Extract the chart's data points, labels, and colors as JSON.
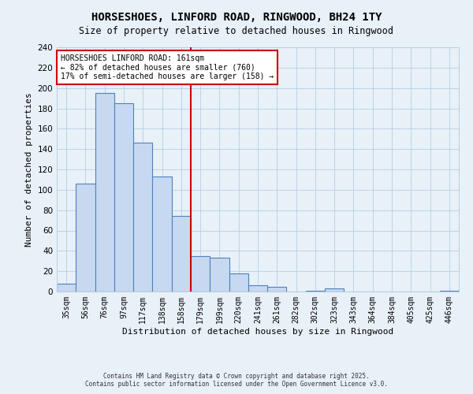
{
  "title": "HORSESHOES, LINFORD ROAD, RINGWOOD, BH24 1TY",
  "subtitle": "Size of property relative to detached houses in Ringwood",
  "xlabel": "Distribution of detached houses by size in Ringwood",
  "ylabel": "Number of detached properties",
  "bar_labels": [
    "35sqm",
    "56sqm",
    "76sqm",
    "97sqm",
    "117sqm",
    "138sqm",
    "158sqm",
    "179sqm",
    "199sqm",
    "220sqm",
    "241sqm",
    "261sqm",
    "282sqm",
    "302sqm",
    "323sqm",
    "343sqm",
    "364sqm",
    "384sqm",
    "405sqm",
    "425sqm",
    "446sqm"
  ],
  "bar_values": [
    8,
    106,
    195,
    185,
    146,
    113,
    74,
    35,
    33,
    18,
    6,
    5,
    0,
    1,
    3,
    0,
    0,
    0,
    0,
    0,
    1
  ],
  "bar_color": "#c6d9f0",
  "bar_edge_color": "#4f81bd",
  "ylim": [
    0,
    240
  ],
  "yticks": [
    0,
    20,
    40,
    60,
    80,
    100,
    120,
    140,
    160,
    180,
    200,
    220,
    240
  ],
  "annotation_title": "HORSESHOES LINFORD ROAD: 161sqm",
  "annotation_line1": "← 82% of detached houses are smaller (760)",
  "annotation_line2": "17% of semi-detached houses are larger (158) →",
  "annotation_box_color": "#ffffff",
  "annotation_box_edge_color": "#cc0000",
  "vline_x_index": 6.5,
  "vline_color": "#cc0000",
  "grid_color": "#b8cfe0",
  "background_color": "#e8f0f8",
  "footer1": "Contains HM Land Registry data © Crown copyright and database right 2025.",
  "footer2": "Contains public sector information licensed under the Open Government Licence v3.0."
}
